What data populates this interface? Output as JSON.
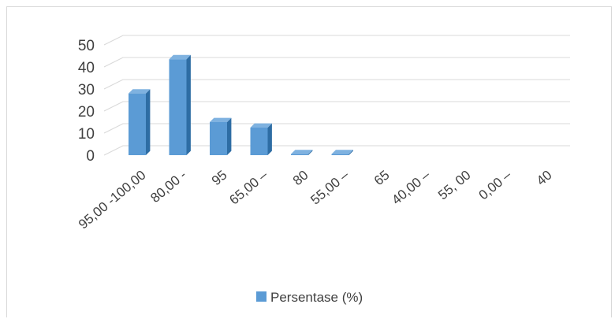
{
  "chart_data": {
    "type": "bar",
    "categories": [
      "95,00 -100,00",
      "80,00 -",
      "95",
      "65,00 –",
      "80",
      "55,00 –",
      "65",
      "40,00 –",
      "55, 00",
      "0,00 –",
      "40"
    ],
    "series": [
      {
        "name": "Persentase (%)",
        "values": [
          28,
          43.5,
          15,
          12.5,
          0.5,
          0.5,
          0,
          0,
          0,
          0,
          0
        ]
      }
    ],
    "yticks": [
      0,
      10,
      20,
      30,
      40,
      50
    ],
    "ylim": [
      0,
      50
    ],
    "grid": true,
    "legend": "bottom",
    "bar_color": "#5b9bd5",
    "bar_side_color": "#2e6da4",
    "bar_top_color": "#7fb2e0"
  }
}
